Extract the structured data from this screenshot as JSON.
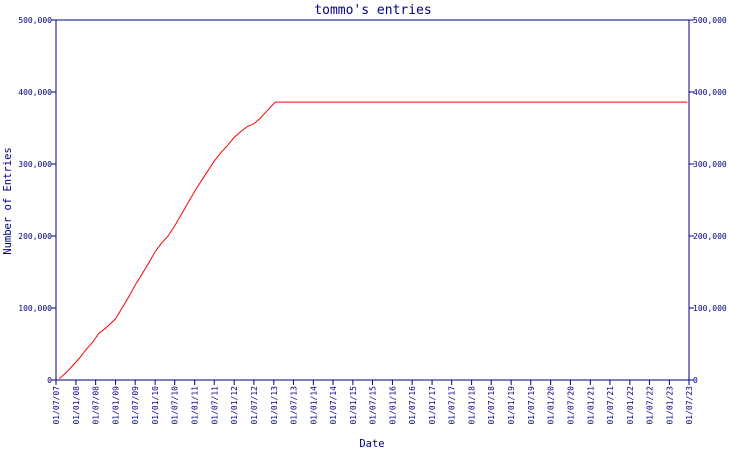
{
  "chart_data": {
    "type": "line",
    "title": "tommo's entries",
    "xlabel": "Date",
    "ylabel": "Number of Entries",
    "ylim": [
      0,
      500000
    ],
    "y_ticks": [
      0,
      100000,
      200000,
      300000,
      400000,
      500000
    ],
    "y_tick_labels": [
      "0",
      "100,000",
      "200,000",
      "300,000",
      "400,000",
      "500,000"
    ],
    "y_axis_labels_on_both_sides": true,
    "x_axis_type": "date",
    "x_tick_labels": [
      "01/07/07",
      "01/01/08",
      "01/07/08",
      "01/01/09",
      "01/07/09",
      "01/01/10",
      "01/07/10",
      "01/01/11",
      "01/07/11",
      "01/01/12",
      "01/07/12",
      "01/01/13",
      "01/07/13",
      "01/01/14",
      "01/07/14",
      "01/01/15",
      "01/07/15",
      "01/01/16",
      "01/07/16",
      "01/01/17",
      "01/07/17",
      "01/01/18",
      "01/07/18",
      "01/01/19",
      "01/07/19",
      "01/01/20",
      "01/07/20",
      "01/01/21",
      "01/07/21",
      "01/01/22",
      "01/07/22",
      "01/01/23",
      "01/07/23"
    ],
    "grid": false,
    "legend": "none",
    "colors": {
      "axis": "#000080",
      "text": "#000080",
      "line": "#ff0000",
      "background": "#ffffff"
    },
    "series": [
      {
        "color": "#ff0000",
        "points": [
          [
            "2007-08-01",
            2000
          ],
          [
            "2007-10-01",
            10000
          ],
          [
            "2007-12-01",
            20000
          ],
          [
            "2008-02-01",
            30000
          ],
          [
            "2008-04-01",
            42000
          ],
          [
            "2008-06-01",
            52000
          ],
          [
            "2008-08-01",
            65000
          ],
          [
            "2008-10-01",
            72000
          ],
          [
            "2009-01-01",
            85000
          ],
          [
            "2009-03-01",
            100000
          ],
          [
            "2009-05-01",
            115000
          ],
          [
            "2009-07-01",
            132000
          ],
          [
            "2009-09-01",
            147000
          ],
          [
            "2009-11-01",
            162000
          ],
          [
            "2010-01-01",
            178000
          ],
          [
            "2010-03-01",
            190000
          ],
          [
            "2010-05-01",
            200000
          ],
          [
            "2010-07-01",
            214000
          ],
          [
            "2010-09-01",
            230000
          ],
          [
            "2010-11-01",
            246000
          ],
          [
            "2011-01-01",
            262000
          ],
          [
            "2011-03-01",
            276000
          ],
          [
            "2011-05-01",
            290000
          ],
          [
            "2011-07-01",
            304000
          ],
          [
            "2011-09-01",
            316000
          ],
          [
            "2011-11-01",
            326000
          ],
          [
            "2012-01-01",
            337000
          ],
          [
            "2012-03-01",
            345000
          ],
          [
            "2012-05-01",
            352000
          ],
          [
            "2012-07-01",
            356000
          ],
          [
            "2012-09-01",
            364000
          ],
          [
            "2012-11-01",
            374000
          ],
          [
            "2013-01-15",
            386000
          ],
          [
            "2023-06-15",
            386000
          ]
        ]
      }
    ]
  }
}
